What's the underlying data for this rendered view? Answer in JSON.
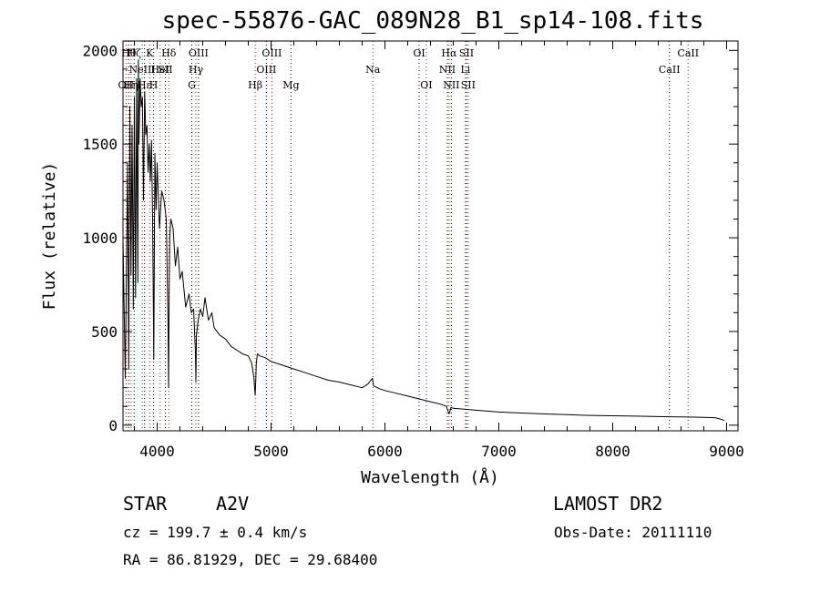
{
  "chart_data": {
    "type": "line",
    "title": "spec-55876-GAC_089N28_B1_sp14-108.fits",
    "xlabel": "Wavelength (Å)",
    "ylabel": "Flux (relative)",
    "xlim": [
      3700,
      9100
    ],
    "ylim": [
      -30,
      2050
    ],
    "xticks": [
      4000,
      5000,
      6000,
      7000,
      8000,
      9000
    ],
    "yticks": [
      0,
      500,
      1000,
      1500,
      2000
    ],
    "grid": false,
    "series": [
      {
        "x": [
          3700,
          3720,
          3735,
          3740,
          3750,
          3760,
          3770,
          3780,
          3790,
          3800,
          3810,
          3820,
          3830,
          3835,
          3840,
          3850,
          3860,
          3870,
          3880,
          3890,
          3900,
          3910,
          3920,
          3930,
          3940,
          3950,
          3960,
          3970,
          3980,
          3990,
          4000,
          4020,
          4040,
          4060,
          4080,
          4095,
          4100,
          4105,
          4110,
          4120,
          4140,
          4160,
          4180,
          4200,
          4220,
          4250,
          4280,
          4300,
          4320,
          4335,
          4340,
          4345,
          4360,
          4380,
          4400,
          4420,
          4450,
          4480,
          4500,
          4550,
          4600,
          4650,
          4700,
          4750,
          4800,
          4830,
          4850,
          4855,
          4861,
          4866,
          4870,
          4880,
          4900,
          4950,
          5000,
          5100,
          5200,
          5300,
          5400,
          5500,
          5600,
          5700,
          5800,
          5850,
          5890,
          5900,
          5950,
          6000,
          6100,
          6200,
          6300,
          6400,
          6500,
          6540,
          6563,
          6580,
          6600,
          6700,
          6800,
          6900,
          7000,
          7200,
          7400,
          7500,
          7600,
          7800,
          8000,
          8200,
          8400,
          8500,
          8600,
          8700,
          8800,
          8900,
          8960,
          8980
        ],
        "y": [
          1000,
          250,
          1100,
          1400,
          300,
          1700,
          800,
          1600,
          620,
          1750,
          680,
          1850,
          760,
          1950,
          1500,
          1850,
          1700,
          1750,
          1200,
          1780,
          1550,
          1600,
          1350,
          1500,
          1300,
          1520,
          1100,
          350,
          1450,
          1150,
          1400,
          1050,
          1250,
          1200,
          1100,
          550,
          200,
          700,
          1000,
          1100,
          1050,
          850,
          950,
          780,
          820,
          630,
          700,
          600,
          620,
          400,
          230,
          480,
          560,
          620,
          580,
          680,
          560,
          600,
          520,
          480,
          460,
          420,
          400,
          380,
          370,
          330,
          250,
          200,
          160,
          250,
          330,
          380,
          370,
          360,
          340,
          320,
          300,
          280,
          260,
          240,
          230,
          215,
          200,
          220,
          250,
          210,
          195,
          185,
          170,
          155,
          140,
          125,
          110,
          100,
          60,
          95,
          90,
          85,
          80,
          75,
          70,
          65,
          60,
          58,
          56,
          52,
          50,
          48,
          46,
          45,
          44,
          43,
          42,
          40,
          30,
          25
        ],
        "color": "#000000"
      }
    ],
    "lines": [
      {
        "x": 3727,
        "labels": [
          "OII"
        ],
        "row": 2
      },
      {
        "x": 3750,
        "labels": [
          "Hθ"
        ],
        "row": 0
      },
      {
        "x": 3771,
        "labels": [
          "Hη"
        ],
        "row": 2
      },
      {
        "x": 3798,
        "labels": [
          "Hζ"
        ],
        "row": 0
      },
      {
        "x": 3869,
        "labels": [
          "NeIII"
        ],
        "row": 1
      },
      {
        "x": 3889,
        "labels": [
          "Hε"
        ],
        "row": 2
      },
      {
        "x": 3934,
        "labels": [
          "K"
        ],
        "row": 0
      },
      {
        "x": 3968,
        "labels": [
          "H"
        ],
        "row": 2
      },
      {
        "x": 4026,
        "labels": [
          "HeI"
        ],
        "row": 1
      },
      {
        "x": 4072,
        "labels": [
          "SII"
        ],
        "row": 1
      },
      {
        "x": 4102,
        "labels": [
          "Hδ"
        ],
        "row": 0
      },
      {
        "x": 4304,
        "labels": [
          "G"
        ],
        "row": 2
      },
      {
        "x": 4340,
        "labels": [
          "Hγ"
        ],
        "row": 1
      },
      {
        "x": 4363,
        "labels": [
          "OIII"
        ],
        "row": 0
      },
      {
        "x": 4861,
        "labels": [
          "Hβ"
        ],
        "row": 2
      },
      {
        "x": 4959,
        "labels": [
          "OIII"
        ],
        "row": 1
      },
      {
        "x": 5007,
        "labels": [
          "OIII"
        ],
        "row": 0
      },
      {
        "x": 5175,
        "labels": [
          "Mg"
        ],
        "row": 2
      },
      {
        "x": 5894,
        "labels": [
          "Na"
        ],
        "row": 1
      },
      {
        "x": 6300,
        "labels": [
          "OI"
        ],
        "row": 0
      },
      {
        "x": 6363,
        "labels": [
          "OI"
        ],
        "row": 2
      },
      {
        "x": 6548,
        "labels": [
          "NII"
        ],
        "row": 1
      },
      {
        "x": 6563,
        "labels": [
          "Hα"
        ],
        "row": 0
      },
      {
        "x": 6583,
        "labels": [
          "NII"
        ],
        "row": 2
      },
      {
        "x": 6707,
        "labels": [
          "Li"
        ],
        "row": 1
      },
      {
        "x": 6716,
        "labels": [
          "SII"
        ],
        "row": 0
      },
      {
        "x": 6731,
        "labels": [
          "SII"
        ],
        "row": 2
      },
      {
        "x": 8498,
        "labels": [
          "CaII"
        ],
        "row": 1
      },
      {
        "x": 8662,
        "labels": [
          "CaII"
        ],
        "row": 0
      }
    ]
  },
  "info": {
    "class_label": "STAR",
    "subclass_label": "A2V",
    "survey_label": "LAMOST DR2",
    "cz_label": "cz = 199.7 ± 0.4 km/s",
    "obs_date_label": "Obs-Date: 20111110",
    "coords_label": "RA =  86.81929, DEC =  29.68400"
  },
  "colors": {
    "line_red": "#d00000",
    "line_black": "#000000"
  }
}
